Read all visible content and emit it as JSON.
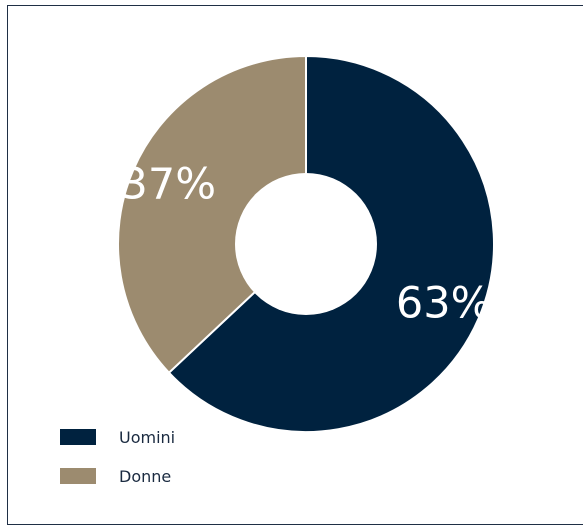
{
  "chart_data": {
    "type": "pie",
    "variant": "donut",
    "title": "",
    "slices": [
      {
        "name": "Uomini",
        "value": 63,
        "label": "63%",
        "color": "#00223f"
      },
      {
        "name": "Donne",
        "value": 37,
        "label": "37%",
        "color": "#9c8b6f"
      }
    ],
    "start_angle": "12 o'clock",
    "direction": "clockwise",
    "legend_placement": "bottom-left"
  }
}
